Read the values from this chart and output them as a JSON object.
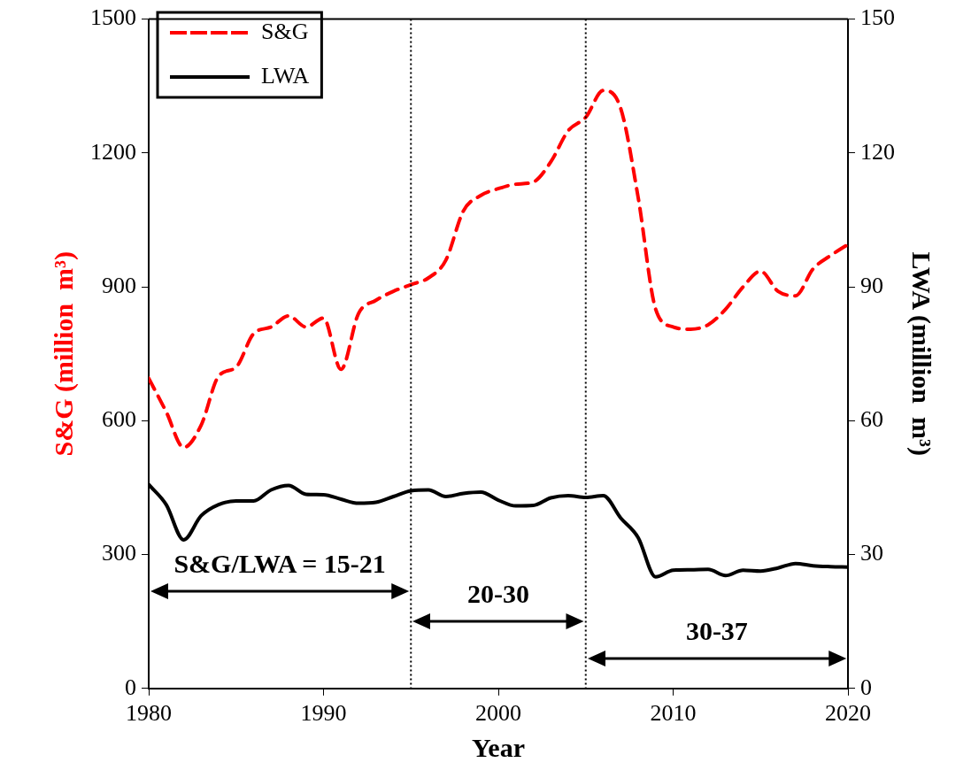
{
  "chart_data": {
    "type": "line",
    "xlabel": "Year",
    "ylabel": "S&G (million  m³)",
    "y2label": "LWA (million  m³)",
    "x": [
      1980,
      1981,
      1982,
      1983,
      1984,
      1985,
      1986,
      1987,
      1988,
      1989,
      1990,
      1991,
      1992,
      1993,
      1994,
      1995,
      1996,
      1997,
      1998,
      1999,
      2000,
      2001,
      2002,
      2003,
      2004,
      2005,
      2006,
      2007,
      2008,
      2009,
      2010,
      2011,
      2012,
      2013,
      2014,
      2015,
      2016,
      2017,
      2018,
      2019,
      2020
    ],
    "series": [
      {
        "name": "S&G",
        "color": "#ff0000",
        "line_style": "dashed",
        "values": [
          695,
          620,
          540,
          590,
          700,
          720,
          795,
          810,
          835,
          810,
          830,
          715,
          840,
          870,
          890,
          905,
          920,
          960,
          1070,
          1105,
          1120,
          1130,
          1135,
          1180,
          1250,
          1280,
          1340,
          1300,
          1100,
          850,
          810,
          805,
          815,
          850,
          900,
          935,
          890,
          880,
          940,
          970,
          995
        ]
      },
      {
        "name": "LWA",
        "color": "#000000",
        "line_style": "solid",
        "axis": "y2",
        "values": [
          45.7,
          41.2,
          33.3,
          38.7,
          41.2,
          42,
          42,
          44.5,
          45.5,
          43.5,
          43.4,
          42.4,
          41.5,
          41.7,
          43,
          44.3,
          44.5,
          43,
          43.7,
          44,
          42.2,
          40.9,
          41,
          42.7,
          43.2,
          42.8,
          43.2,
          38.2,
          33.8,
          25,
          26.5,
          26.6,
          26.7,
          25.3,
          26.5,
          26.3,
          27,
          28,
          27.5,
          27.3,
          27.2
        ]
      }
    ],
    "xlim": [
      1980,
      2020
    ],
    "xticks": [
      1980,
      1990,
      2000,
      2010,
      2020
    ],
    "ylim": [
      0,
      1500
    ],
    "yticks": [
      0,
      300,
      600,
      900,
      1200,
      1500
    ],
    "y2lim": [
      0,
      150
    ],
    "y2ticks": [
      0,
      30,
      60,
      90,
      120,
      150
    ],
    "ref_lines": [
      {
        "axis": "x",
        "value": 1995,
        "line_style": "dotted"
      },
      {
        "axis": "x",
        "value": 2005,
        "line_style": "dotted"
      }
    ],
    "annotations": [
      "S&G/LWA = 15-21",
      "20-30",
      "30-37"
    ],
    "grid": false,
    "legend": "top left",
    "marker": "none"
  }
}
